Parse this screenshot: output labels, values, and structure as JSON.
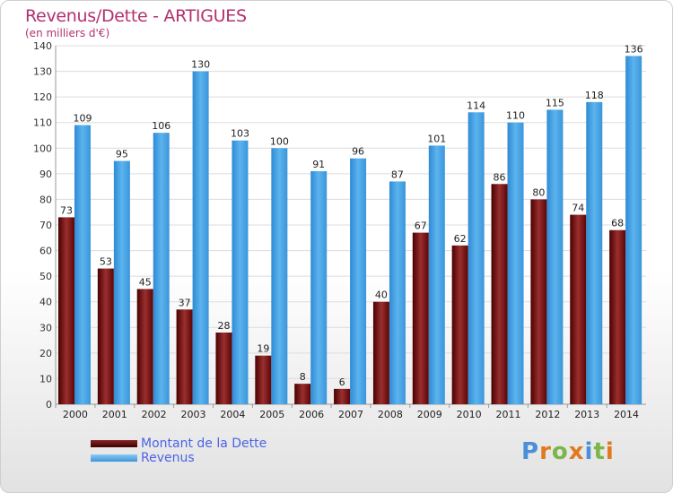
{
  "chart_data": {
    "type": "bar",
    "title": "Revenus/Dette - ARTIGUES",
    "subtitle": "(en milliers d'€)",
    "categories": [
      "2000",
      "2001",
      "2002",
      "2003",
      "2004",
      "2005",
      "2006",
      "2007",
      "2008",
      "2009",
      "2010",
      "2011",
      "2012",
      "2013",
      "2014"
    ],
    "series": [
      {
        "name": "Montant de la Dette",
        "color": "#8b2323",
        "values": [
          73,
          53,
          45,
          37,
          28,
          19,
          8,
          6,
          40,
          67,
          62,
          86,
          80,
          74,
          68
        ]
      },
      {
        "name": "Revenus",
        "color": "#4da6e6",
        "values": [
          109,
          95,
          106,
          130,
          103,
          100,
          91,
          96,
          87,
          101,
          114,
          110,
          115,
          118,
          136
        ]
      }
    ],
    "yticks": [
      0,
      10,
      20,
      30,
      40,
      50,
      60,
      70,
      80,
      90,
      100,
      110,
      120,
      130,
      140
    ],
    "ylim": [
      0,
      140
    ],
    "grid": true,
    "legend_position": "bottom-left"
  },
  "logo": {
    "text": "Proxiti",
    "letters": [
      "P",
      "r",
      "o",
      "x",
      "i",
      "t",
      "i"
    ],
    "colors": [
      "#4a90d9",
      "#e07a1f",
      "#7ab648",
      "#e07a1f",
      "#4a90d9",
      "#7ab648",
      "#e07a1f"
    ]
  }
}
